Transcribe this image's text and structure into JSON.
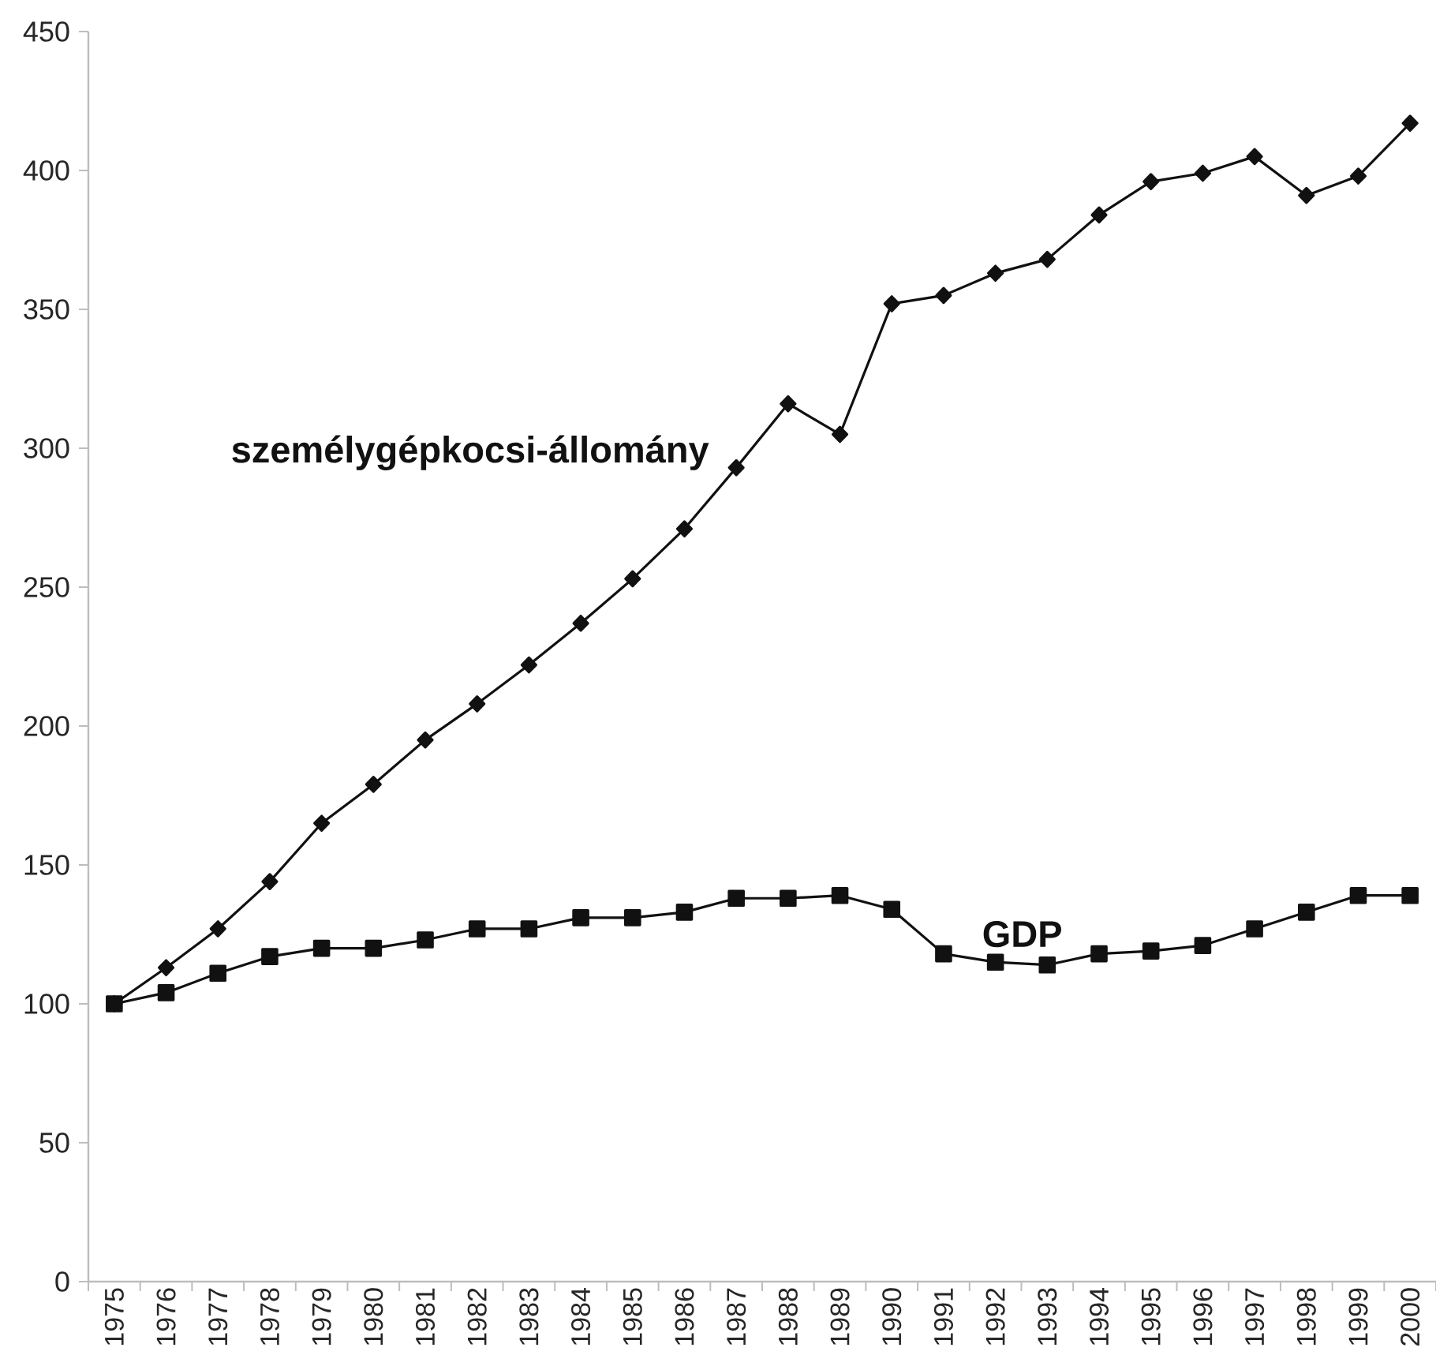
{
  "chart_data": {
    "type": "line",
    "categories": [
      "1975",
      "1976",
      "1977",
      "1978",
      "1979",
      "1980",
      "1981",
      "1982",
      "1983",
      "1984",
      "1985",
      "1986",
      "1987",
      "1988",
      "1989",
      "1990",
      "1991",
      "1992",
      "1993",
      "1994",
      "1995",
      "1996",
      "1997",
      "1998",
      "1999",
      "2000"
    ],
    "ylim": [
      0,
      450
    ],
    "yticks": [
      0,
      50,
      100,
      150,
      200,
      250,
      300,
      350,
      400,
      450
    ],
    "series": [
      {
        "name": "személygépkocsi-állomány",
        "color": "#111111",
        "marker": "diamond",
        "values": [
          100,
          113,
          127,
          144,
          165,
          179,
          195,
          208,
          222,
          237,
          253,
          271,
          293,
          316,
          305,
          352,
          355,
          363,
          368,
          384,
          396,
          399,
          405,
          391,
          398,
          417
        ]
      },
      {
        "name": "GDP",
        "color": "#111111",
        "marker": "square",
        "values": [
          100,
          104,
          111,
          117,
          120,
          120,
          123,
          127,
          127,
          131,
          131,
          133,
          138,
          138,
          139,
          134,
          118,
          115,
          114,
          118,
          119,
          121,
          127,
          133,
          139,
          139
        ]
      }
    ]
  }
}
